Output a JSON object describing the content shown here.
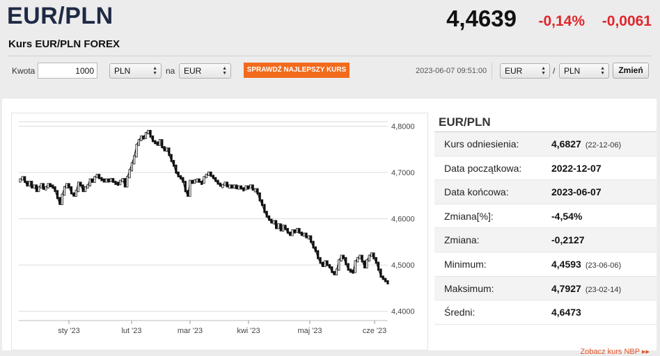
{
  "header": {
    "pair": "EUR/PLN",
    "subtitle": "Kurs EUR/PLN FOREX",
    "price": "4,4639",
    "change_pct": "-0,14%",
    "change_abs": "-0,0061"
  },
  "converter": {
    "amount_label": "Kwota",
    "amount_value": "1000",
    "from_currency": "PLN",
    "to_label": "na",
    "to_currency": "EUR",
    "best_rate_button": "SPRAWDŹ NAJLEPSZY KURS"
  },
  "pair_selector": {
    "timestamp": "2023-06-07 09:51:00",
    "base": "EUR",
    "separator": "/",
    "quote": "PLN",
    "change_button": "Zmień"
  },
  "stats": {
    "title": "EUR/PLN",
    "rows": [
      {
        "label": "Kurs odniesienia:",
        "value": "4,6827",
        "date": "(22-12-06)"
      },
      {
        "label": "Data początkowa:",
        "value": "2022-12-07",
        "date": ""
      },
      {
        "label": "Data końcowa:",
        "value": "2023-06-07",
        "date": ""
      },
      {
        "label": "Zmiana[%]:",
        "value": "-4,54%",
        "date": ""
      },
      {
        "label": "Zmiana:",
        "value": "-0,2127",
        "date": ""
      },
      {
        "label": "Minimum:",
        "value": "4,4593",
        "date": "(23-06-06)"
      },
      {
        "label": "Maksimum:",
        "value": "4,7927",
        "date": "(23-02-14)"
      },
      {
        "label": "Średni:",
        "value": "4,6473",
        "date": ""
      }
    ],
    "nbp_link": "Zobacz kurs NBP ▸▸"
  },
  "chart_data": {
    "type": "line",
    "series": [
      {
        "values": [
          4.685,
          4.69,
          4.68,
          4.672,
          4.68,
          4.668,
          4.672,
          4.66,
          4.668,
          4.675,
          4.665,
          4.668,
          4.675,
          4.672,
          4.668,
          4.66,
          4.645,
          4.632,
          4.652,
          4.668,
          4.675,
          4.668,
          4.655,
          4.65,
          4.66,
          4.678,
          4.672,
          4.66,
          4.668,
          4.672,
          4.685,
          4.68,
          4.69,
          4.695,
          4.688,
          4.685,
          4.683,
          4.685,
          4.682,
          4.686,
          4.68,
          4.678,
          4.675,
          4.682,
          4.686,
          4.67,
          4.69,
          4.705,
          4.72,
          4.735,
          4.76,
          4.77,
          4.778,
          4.775,
          4.785,
          4.79,
          4.778,
          4.768,
          4.765,
          4.76,
          4.77,
          4.755,
          4.748,
          4.752,
          4.738,
          4.725,
          4.715,
          4.7,
          4.692,
          4.688,
          4.68,
          4.66,
          4.65,
          4.682,
          4.68,
          4.683,
          4.685,
          4.68,
          4.678,
          4.69,
          4.695,
          4.7,
          4.693,
          4.688,
          4.682,
          4.676,
          4.672,
          4.673,
          4.678,
          4.67,
          4.672,
          4.668,
          4.672,
          4.666,
          4.67,
          4.666,
          4.664,
          4.67,
          4.668,
          4.672,
          4.663,
          4.664,
          4.655,
          4.64,
          4.63,
          4.615,
          4.605,
          4.598,
          4.592,
          4.595,
          4.58,
          4.588,
          4.575,
          4.585,
          4.578,
          4.57,
          4.565,
          4.575,
          4.572,
          4.578,
          4.57,
          4.565,
          4.568,
          4.56,
          4.562,
          4.55,
          4.538,
          4.53,
          4.515,
          4.505,
          4.498,
          4.508,
          4.5,
          4.495,
          4.485,
          4.48,
          4.49,
          4.51,
          4.52,
          4.515,
          4.502,
          4.49,
          4.488,
          4.485,
          4.508,
          4.515,
          4.52,
          4.508,
          4.495,
          4.51,
          4.52,
          4.525,
          4.515,
          4.505,
          4.49,
          4.475,
          4.47,
          4.465,
          4.4639
        ]
      }
    ],
    "x_ticks": [
      "sty '23",
      "lut '23",
      "mar '23",
      "kwi '23",
      "maj '23",
      "cze '23"
    ],
    "y_ticks": [
      "4,4000",
      "4,5000",
      "4,6000",
      "4,7000",
      "4,8000"
    ],
    "ylim": [
      4.38,
      4.81
    ],
    "grid": true
  }
}
